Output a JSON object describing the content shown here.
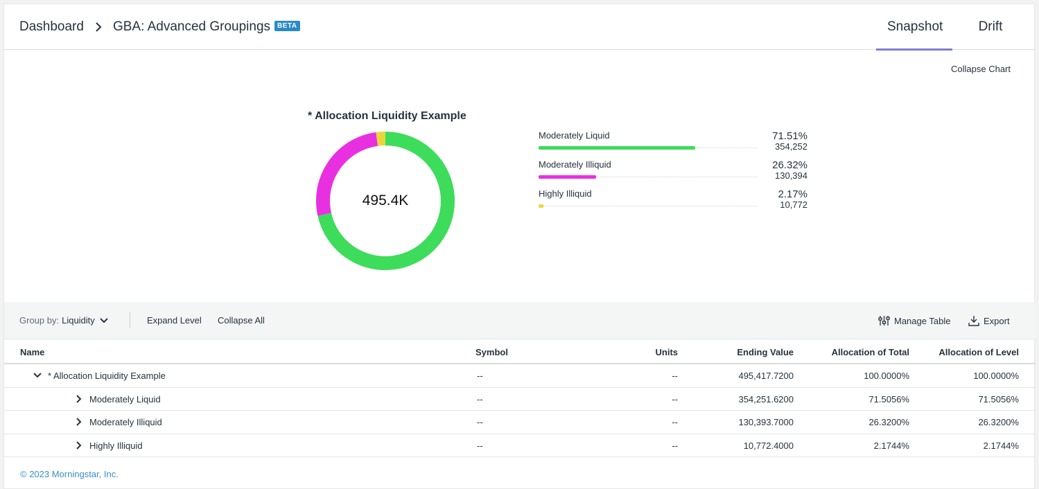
{
  "breadcrumb": {
    "dashboard": "Dashboard",
    "current": "GBA: Advanced Groupings",
    "badge": "BETA"
  },
  "tabs": [
    {
      "label": "Snapshot",
      "active": true
    },
    {
      "label": "Drift",
      "active": false
    }
  ],
  "chart_toggle": "Collapse Chart",
  "chart": {
    "title": "* Allocation Liquidity Example",
    "center_label": "495.4K",
    "slices": [
      {
        "label": "Moderately Liquid",
        "pct": 71.51,
        "pct_text": "71.51%",
        "value_text": "354,252",
        "color": "#3ddc5a"
      },
      {
        "label": "Moderately Illiquid",
        "pct": 26.32,
        "pct_text": "26.32%",
        "value_text": "130,394",
        "color": "#e930e0"
      },
      {
        "label": "Highly Illiquid",
        "pct": 2.17,
        "pct_text": "2.17%",
        "value_text": "10,772",
        "color": "#ead63a"
      }
    ]
  },
  "chart_data": {
    "type": "pie",
    "title": "* Allocation Liquidity Example",
    "categories": [
      "Moderately Liquid",
      "Moderately Illiquid",
      "Highly Illiquid"
    ],
    "values": [
      71.51,
      26.32,
      2.17
    ],
    "colors": [
      "#3ddc5a",
      "#e930e0",
      "#ead63a"
    ]
  },
  "toolbar": {
    "groupby_label": "Group by:",
    "groupby_value": "Liquidity",
    "expand_level": "Expand Level",
    "collapse_all": "Collapse All",
    "manage_table": "Manage Table",
    "export": "Export"
  },
  "table": {
    "columns": [
      "Name",
      "Symbol",
      "Units",
      "Ending Value",
      "Allocation of Total",
      "Allocation of Level"
    ],
    "rows": [
      {
        "name": "* Allocation Liquidity Example",
        "symbol": "--",
        "units": "--",
        "ending": "495,417.7200",
        "total": "100.0000%",
        "level": "100.0000%",
        "expanded": true,
        "depth": 0
      },
      {
        "name": "Moderately Liquid",
        "symbol": "--",
        "units": "--",
        "ending": "354,251.6200",
        "total": "71.5056%",
        "level": "71.5056%",
        "expanded": false,
        "depth": 1
      },
      {
        "name": "Moderately Illiquid",
        "symbol": "--",
        "units": "--",
        "ending": "130,393.7000",
        "total": "26.3200%",
        "level": "26.3200%",
        "expanded": false,
        "depth": 1
      },
      {
        "name": "Highly Illiquid",
        "symbol": "--",
        "units": "--",
        "ending": "10,772.4000",
        "total": "2.1744%",
        "level": "2.1744%",
        "expanded": false,
        "depth": 1
      }
    ]
  },
  "footer": "© 2023 Morningstar, Inc."
}
